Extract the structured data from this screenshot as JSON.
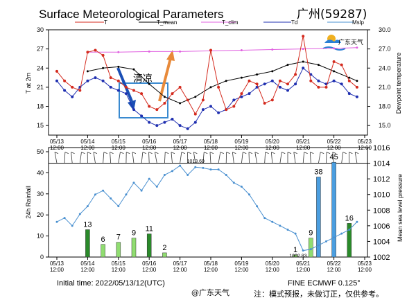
{
  "title": "Surface Meteorological Parameters",
  "station": "广州(59287)",
  "logo_text": "广东天气",
  "annotation_text": "清凉",
  "initial_time": "Initial time: 2022/05/13/12(UTC)",
  "model_label": "FINE ECMWF 0.125°",
  "watermark": "@广东天气",
  "note": "注：模式预报，未做订正，仅供参考。",
  "date_ticks": [
    "05/13\n12:00",
    "05/14\n12:00",
    "05/15\n12:00",
    "05/16\n12:00",
    "05/17\n12:00",
    "05/18\n12:00",
    "05/19\n12:00",
    "05/20\n12:00",
    "05/21\n12:00",
    "05/22\n12:00",
    "05/23\n12:00"
  ],
  "colors": {
    "T": "#d42a1e",
    "T_mean": "#000000",
    "T_clim": "#e060e0",
    "Td": "#1f2fb0",
    "Mslp": "#4a90d0",
    "rain_blue": "#4a9ee0",
    "rain_green": "#2a8a2a",
    "rain_lightgreen": "#90dd70",
    "arrow_blue": "#1a4fb5",
    "arrow_orange": "#e88a3a",
    "box": "#3a8ad0"
  },
  "chart_data": [
    {
      "type": "line",
      "x_axis": "05/13 12:00 to 05/23 12:00, 3-hourly",
      "ylabel_left": "T at 2m",
      "ylabel_right": "Dewpoint temperature",
      "ylim_left": [
        13.5,
        30
      ],
      "yticks_left": [
        15,
        18,
        21,
        24,
        27,
        30
      ],
      "ylim_right": [
        13.5,
        30
      ],
      "yticks_right": [
        "15.0",
        "18.0",
        "21.0",
        "24.0",
        "27.0",
        "30.0"
      ],
      "legend": [
        "T",
        "T_mean",
        "T_clim",
        "Td",
        "Mslp"
      ],
      "series": [
        {
          "name": "T",
          "x": [
            0,
            0.25,
            0.5,
            0.75,
            1,
            1.25,
            1.5,
            1.75,
            2,
            2.25,
            2.5,
            2.75,
            3,
            3.25,
            3.5,
            3.75,
            4,
            4.25,
            4.5,
            4.75,
            5,
            5.25,
            5.5,
            5.75,
            6,
            6.25,
            6.5,
            6.75,
            7,
            7.25,
            7.5,
            7.75,
            8,
            8.25,
            8.5,
            8.75,
            9,
            9.25,
            9.5,
            9.75
          ],
          "values": [
            23.5,
            22,
            21,
            20.5,
            26.5,
            26.8,
            26,
            22.5,
            22,
            21,
            20.5,
            20,
            18,
            17.5,
            18.5,
            20,
            21,
            19,
            16.8,
            19,
            26.8,
            21,
            17.5,
            18,
            20,
            22,
            21.5,
            18.5,
            19,
            22,
            21.5,
            23,
            29,
            22,
            21,
            21,
            25,
            24.5,
            22,
            21
          ]
        },
        {
          "name": "T_mean",
          "x": [
            1,
            1.5,
            2,
            2.5,
            3,
            3.5,
            4,
            4.5,
            5,
            5.5,
            6,
            6.5,
            7,
            7.5,
            8,
            8.5,
            9,
            9.5,
            9.75
          ],
          "values": [
            23.5,
            24,
            24.2,
            23.8,
            21.5,
            19.5,
            18.5,
            19.5,
            21,
            22,
            22.5,
            23,
            23.5,
            24.5,
            25,
            24.5,
            23.5,
            22.5,
            22
          ]
        },
        {
          "name": "T_clim",
          "x": [
            1,
            2,
            3,
            4,
            5,
            6,
            7,
            8,
            9,
            9.75
          ],
          "values": [
            26.5,
            26.5,
            26.6,
            26.6,
            26.7,
            26.8,
            26.9,
            27,
            27.1,
            27.2
          ]
        },
        {
          "name": "Td",
          "x": [
            0,
            0.25,
            0.5,
            0.75,
            1,
            1.25,
            1.5,
            1.75,
            2,
            2.25,
            2.5,
            2.75,
            3,
            3.25,
            3.5,
            3.75,
            4,
            4.25,
            4.5,
            4.75,
            5,
            5.25,
            5.5,
            5.75,
            6,
            6.25,
            6.5,
            6.75,
            7,
            7.25,
            7.5,
            7.75,
            8,
            8.25,
            8.5,
            8.75,
            9,
            9.25,
            9.5,
            9.75
          ],
          "values": [
            22,
            20.5,
            19.5,
            21,
            22,
            22.5,
            22,
            21,
            20.5,
            20,
            17.5,
            16.5,
            15.5,
            15,
            15.5,
            16,
            15,
            14.5,
            15.5,
            17.5,
            18,
            17,
            17.5,
            19,
            19.5,
            20,
            21,
            21.5,
            22,
            21,
            20.5,
            21.5,
            24,
            23,
            22,
            21.5,
            22,
            21.5,
            20,
            19.5
          ]
        }
      ]
    },
    {
      "type": "bar",
      "ylabel_left": "24h Rainfall",
      "ylabel_right": "Mean sea level pressure",
      "ylim_left": [
        0,
        50
      ],
      "yticks_left": [
        0,
        10,
        20,
        30,
        40,
        50
      ],
      "ylim_right": [
        1002,
        1016
      ],
      "yticks_right": [
        1002,
        1004,
        1006,
        1008,
        1010,
        1012,
        1014,
        1016
      ],
      "bars": [
        {
          "x": 1,
          "value": 13,
          "label": "13",
          "color": "green"
        },
        {
          "x": 1.5,
          "value": 6,
          "label": "6",
          "color": "lightgreen"
        },
        {
          "x": 2,
          "value": 7,
          "label": "7",
          "color": "lightgreen"
        },
        {
          "x": 2.5,
          "value": 9,
          "label": "9",
          "color": "lightgreen"
        },
        {
          "x": 3,
          "value": 11,
          "label": "11",
          "color": "green"
        },
        {
          "x": 3.5,
          "value": 2,
          "label": "2",
          "color": "lightgreen"
        },
        {
          "x": 7.75,
          "value": 1,
          "label": "1",
          "color": "lightgreen"
        },
        {
          "x": 8.25,
          "value": 9,
          "label": "9",
          "color": "lightgreen"
        },
        {
          "x": 8.5,
          "value": 38,
          "label": "38",
          "color": "blue"
        },
        {
          "x": 9,
          "value": 45,
          "label": "45",
          "color": "blue"
        },
        {
          "x": 9.5,
          "value": 16,
          "label": "16",
          "color": "green"
        }
      ],
      "mslp": {
        "name": "Mslp",
        "max_label": "1013.69",
        "min_label": "1002.83",
        "x": [
          0,
          0.25,
          0.5,
          0.75,
          1,
          1.25,
          1.5,
          1.75,
          2,
          2.25,
          2.5,
          2.75,
          3,
          3.25,
          3.5,
          3.75,
          4,
          4.25,
          4.5,
          4.75,
          5,
          5.25,
          5.5,
          5.75,
          6,
          6.25,
          6.5,
          6.75,
          7,
          7.25,
          7.5,
          7.75,
          8,
          8.25,
          8.5,
          8.75,
          9,
          9.25,
          9.5,
          9.75
        ],
        "values": [
          1006.5,
          1007,
          1006,
          1007.5,
          1008.5,
          1010,
          1010.5,
          1009.5,
          1008.5,
          1010,
          1011.5,
          1010.5,
          1012,
          1011,
          1012.5,
          1013,
          1013.69,
          1012.5,
          1013.5,
          1013.4,
          1013.2,
          1013.2,
          1012.5,
          1011.5,
          1011,
          1010,
          1008.5,
          1007,
          1006.5,
          1006,
          1005.5,
          1005,
          1002.83,
          1003,
          1003.5,
          1004,
          1004.5,
          1005,
          1005.5,
          1006.5
        ]
      }
    }
  ]
}
